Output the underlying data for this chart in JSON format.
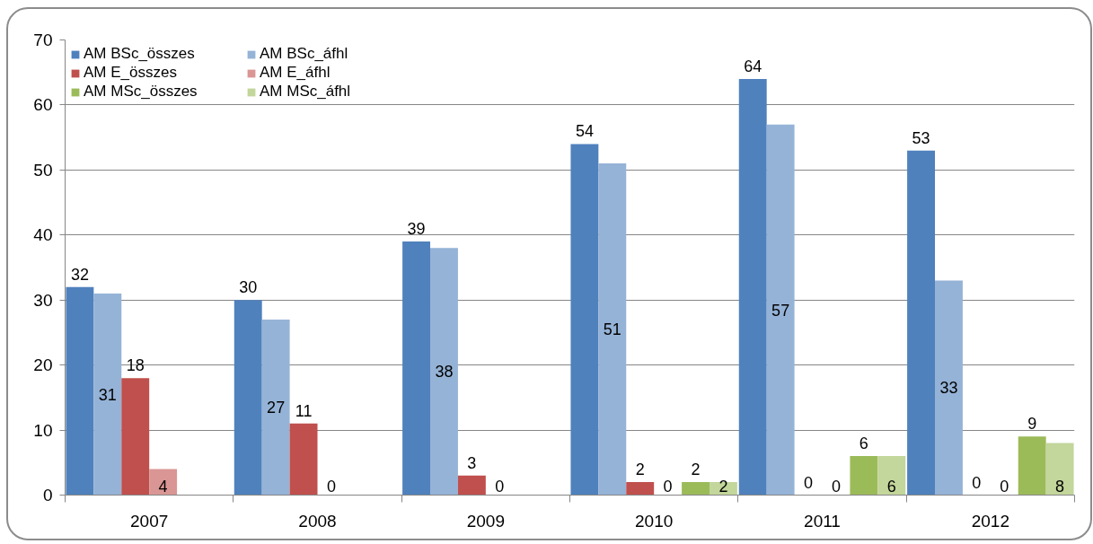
{
  "chart_data": {
    "type": "bar",
    "categories": [
      "2007",
      "2008",
      "2009",
      "2010",
      "2011",
      "2012"
    ],
    "series": [
      {
        "name": "AM BSc_összes",
        "color": "#4f81bd",
        "values": [
          32,
          30,
          39,
          54,
          64,
          53
        ]
      },
      {
        "name": "AM BSc_áfhl",
        "color": "#95b3d7",
        "values": [
          31,
          27,
          38,
          51,
          57,
          33
        ]
      },
      {
        "name": "AM E_összes",
        "color": "#c0504d",
        "values": [
          18,
          11,
          3,
          2,
          0,
          0
        ]
      },
      {
        "name": "AM E_áfhl",
        "color": "#d99694",
        "values": [
          4,
          0,
          0,
          0,
          0,
          0
        ]
      },
      {
        "name": "AM MSc_összes",
        "color": "#9bbb59",
        "values": [
          null,
          null,
          null,
          2,
          6,
          9
        ]
      },
      {
        "name": "AM MSc_áfhl",
        "color": "#c3d69b",
        "values": [
          null,
          null,
          null,
          2,
          6,
          8
        ]
      }
    ],
    "ylim": [
      0,
      70
    ],
    "yticks": [
      0,
      10,
      20,
      30,
      40,
      50,
      60,
      70
    ],
    "grid": "y",
    "legend": "top left",
    "data_labels": true
  }
}
